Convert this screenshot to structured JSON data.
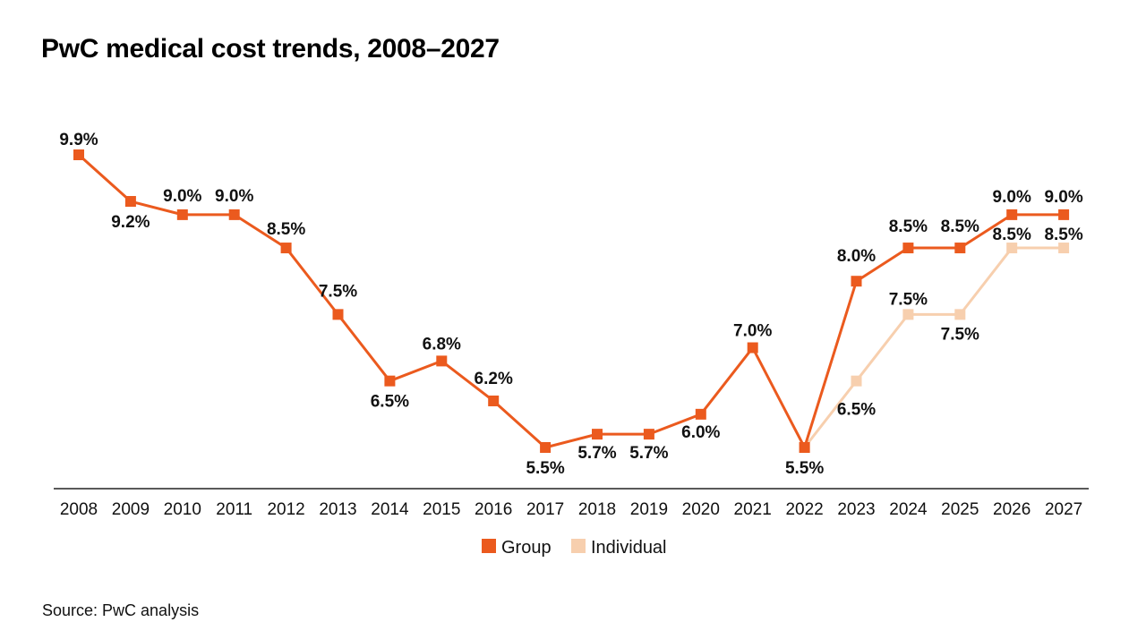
{
  "title": "PwC medical cost trends, 2008–2027",
  "source": "Source: PwC analysis",
  "colors": {
    "group": "#eb5a1e",
    "individual": "#f7cfae",
    "axis": "#222222"
  },
  "chart_data": {
    "type": "line",
    "title": "PwC medical cost trends, 2008–2027",
    "categories": [
      "2008",
      "2009",
      "2010",
      "2011",
      "2012",
      "2013",
      "2014",
      "2015",
      "2016",
      "2017",
      "2018",
      "2019",
      "2020",
      "2021",
      "2022",
      "2023",
      "2024",
      "2025",
      "2026",
      "2027"
    ],
    "series": [
      {
        "name": "Group",
        "values": [
          9.9,
          9.2,
          9.0,
          9.0,
          8.5,
          7.5,
          6.5,
          6.8,
          6.2,
          5.5,
          5.7,
          5.7,
          6.0,
          7.0,
          5.5,
          8.0,
          8.5,
          8.5,
          9.0,
          9.0
        ],
        "labels": [
          "9.9%",
          "9.2%",
          "9.0%",
          "9.0%",
          "8.5%",
          "7.5%",
          "6.5%",
          "6.8%",
          "6.2%",
          "5.5%",
          "5.7%",
          "5.7%",
          "6.0%",
          "7.0%",
          "5.5%",
          "8.0%",
          "8.5%",
          "8.5%",
          "9.0%",
          "9.0%"
        ]
      },
      {
        "name": "Individual",
        "values": [
          null,
          null,
          null,
          null,
          null,
          null,
          null,
          null,
          null,
          null,
          null,
          null,
          null,
          null,
          5.5,
          6.5,
          7.5,
          7.5,
          8.5,
          8.5
        ],
        "labels": [
          null,
          null,
          null,
          null,
          null,
          null,
          null,
          null,
          null,
          null,
          null,
          null,
          null,
          null,
          null,
          "6.5%",
          "7.5%",
          "7.5%",
          "8.5%",
          "8.5%"
        ]
      }
    ],
    "ylim": [
      5.5,
      9.9
    ],
    "grid": false,
    "legend": "bottom-center"
  }
}
